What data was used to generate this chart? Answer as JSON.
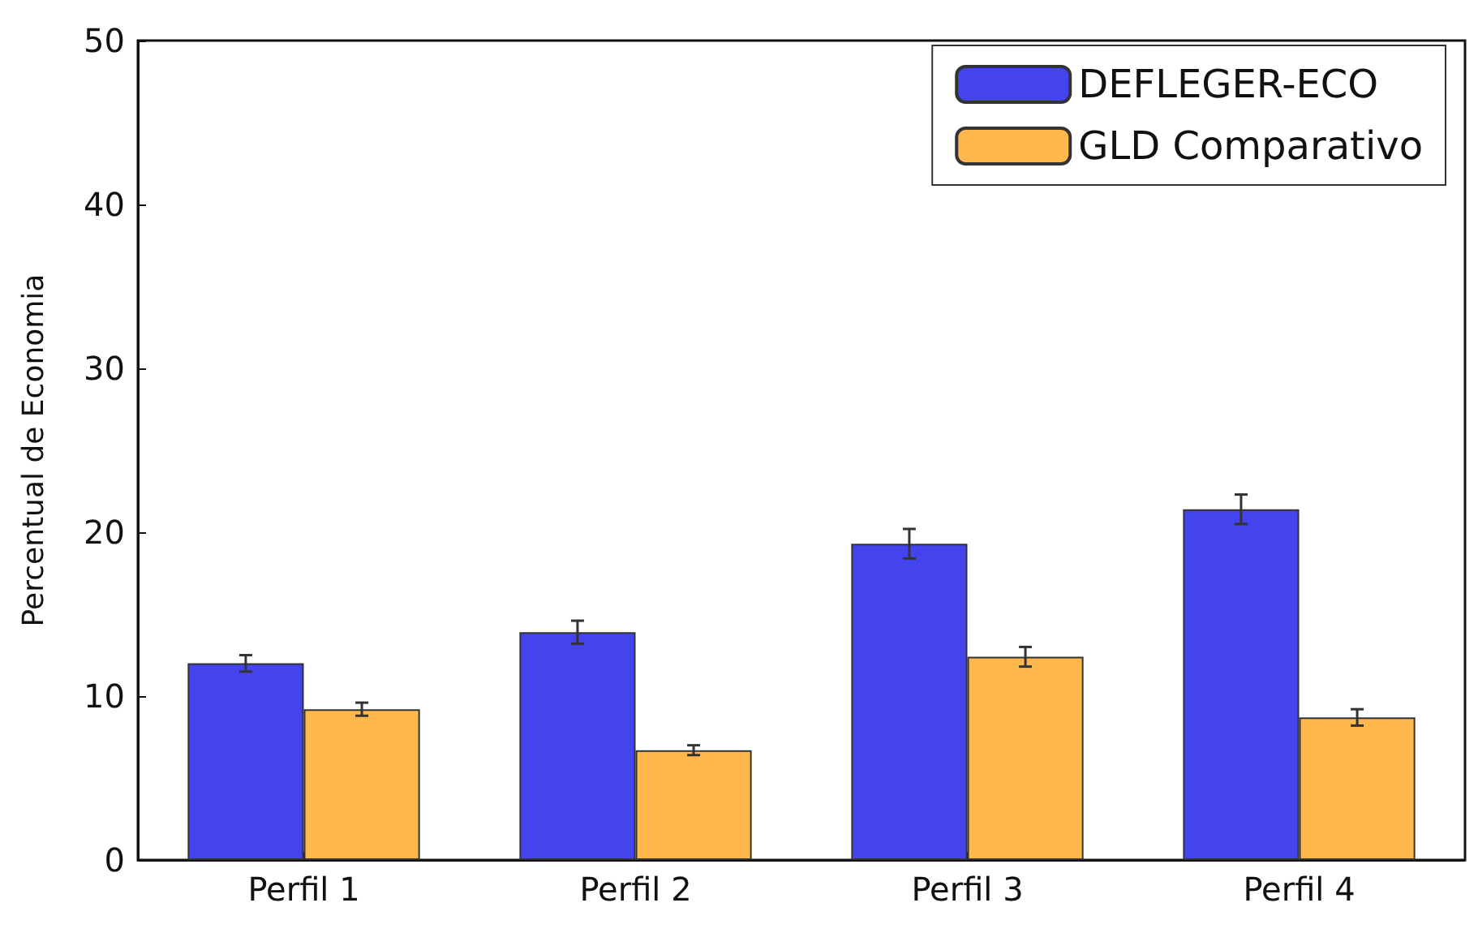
{
  "chart_data": {
    "type": "bar",
    "ylabel": "Percentual de Economia",
    "categories": [
      "Perfil 1",
      "Perfil 2",
      "Perfil 3",
      "Perfil 4"
    ],
    "series": [
      {
        "name": "DEFLEGER-ECO",
        "color": "#4444ee",
        "values": [
          12.0,
          13.9,
          19.3,
          21.4
        ],
        "errors": [
          0.5,
          0.7,
          0.9,
          0.9
        ]
      },
      {
        "name": "GLD Comparativo",
        "color": "#ffb84d",
        "values": [
          9.2,
          6.7,
          12.4,
          8.7
        ],
        "errors": [
          0.4,
          0.3,
          0.6,
          0.5
        ]
      }
    ],
    "ylim": [
      0,
      50
    ],
    "yticks": [
      0,
      10,
      20,
      30,
      40,
      50
    ],
    "grid": false,
    "legend": "top right"
  }
}
